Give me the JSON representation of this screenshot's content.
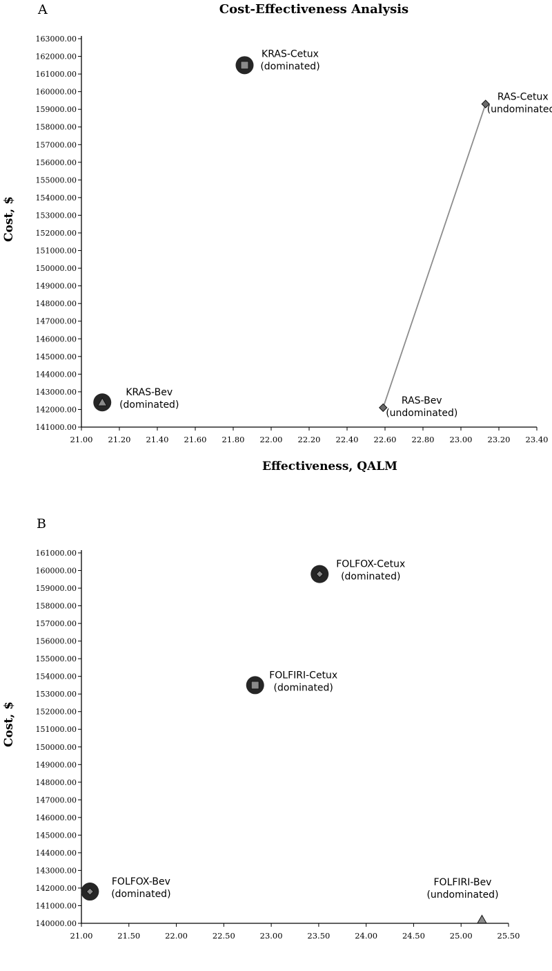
{
  "chart_data": [
    {
      "type": "scatter",
      "panel_label": "A",
      "title": "Cost-Effectiveness Analysis",
      "xlabel": "Effectiveness, QALM",
      "ylabel": "Cost, $",
      "xlim": [
        21.0,
        23.4
      ],
      "ylim": [
        141000,
        163000
      ],
      "x_ticks": [
        "21.00",
        "21.20",
        "21.40",
        "21.60",
        "21.80",
        "22.00",
        "22.20",
        "22.40",
        "22.60",
        "22.80",
        "23.00",
        "23.20",
        "23.40"
      ],
      "y_ticks": [
        "141000.00",
        "142000.00",
        "143000.00",
        "144000.00",
        "145000.00",
        "146000.00",
        "147000.00",
        "148000.00",
        "149000.00",
        "150000.00",
        "151000.00",
        "152000.00",
        "153000.00",
        "154000.00",
        "155000.00",
        "156000.00",
        "157000.00",
        "158000.00",
        "159000.00",
        "160000.00",
        "161000.00",
        "162000.00",
        "163000.00"
      ],
      "grid": false,
      "points": [
        {
          "name": "KRAS-Cetux",
          "status": "(dominated)",
          "x": 21.86,
          "y": 161500,
          "marker": "square",
          "dominated": true,
          "label_dx": 26,
          "label_dy": -12
        },
        {
          "name": "RAS-Cetux",
          "status": "(undominated)",
          "x": 23.13,
          "y": 159300,
          "marker": "diamond",
          "dominated": false,
          "label_dx": 14,
          "label_dy": -6
        },
        {
          "name": "KRAS-Bev",
          "status": "(dominated)",
          "x": 21.11,
          "y": 142400,
          "marker": "triangle",
          "dominated": true,
          "label_dx": 28,
          "label_dy": -10
        },
        {
          "name": "RAS-Bev",
          "status": "(undominated)",
          "x": 22.59,
          "y": 142100,
          "marker": "diamond",
          "dominated": false,
          "label_dx": 16,
          "label_dy": -6
        }
      ],
      "frontier": [
        "RAS-Bev",
        "RAS-Cetux"
      ]
    },
    {
      "type": "scatter",
      "panel_label": "B",
      "title": "",
      "xlabel": "",
      "ylabel": "Cost, $",
      "xlim": [
        21.0,
        25.5
      ],
      "ylim": [
        140000,
        161000
      ],
      "x_ticks": [
        "21.00",
        "21.50",
        "22.00",
        "22.50",
        "23.00",
        "23.50",
        "24.00",
        "24.50",
        "25.00",
        "25.50"
      ],
      "y_ticks": [
        "140000.00",
        "141000.00",
        "142000.00",
        "143000.00",
        "144000.00",
        "145000.00",
        "146000.00",
        "147000.00",
        "148000.00",
        "149000.00",
        "150000.00",
        "151000.00",
        "152000.00",
        "153000.00",
        "154000.00",
        "155000.00",
        "156000.00",
        "157000.00",
        "158000.00",
        "159000.00",
        "160000.00",
        "161000.00"
      ],
      "grid": false,
      "points": [
        {
          "name": "FOLFOX-Cetux",
          "status": "(dominated)",
          "x": 23.51,
          "y": 159800,
          "marker": "diamond",
          "dominated": true,
          "label_dx": 34,
          "label_dy": -10
        },
        {
          "name": "FOLFIRI-Cetux",
          "status": "(dominated)",
          "x": 22.83,
          "y": 153500,
          "marker": "square",
          "dominated": true,
          "label_dx": 30,
          "label_dy": -10
        },
        {
          "name": "FOLFOX-Bev",
          "status": "(dominated)",
          "x": 21.09,
          "y": 141800,
          "marker": "diamond",
          "dominated": true,
          "label_dx": 34,
          "label_dy": -10
        },
        {
          "name": "FOLFIRI-Bev",
          "status": "(undominated)",
          "x": 25.22,
          "y": 140200,
          "marker": "triangle",
          "dominated": false,
          "label_dx": -68,
          "label_dy": -50
        }
      ],
      "frontier": []
    }
  ]
}
